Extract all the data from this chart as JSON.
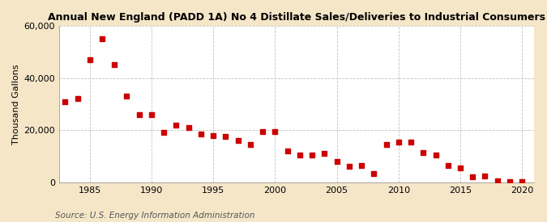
{
  "title": "Annual New England (PADD 1A) No 4 Distillate Sales/Deliveries to Industrial Consumers",
  "ylabel": "Thousand Gallons",
  "source": "Source: U.S. Energy Information Administration",
  "outer_bg": "#f5e6c8",
  "plot_bg": "#ffffff",
  "point_color": "#cc0000",
  "years": [
    1983,
    1984,
    1985,
    1986,
    1987,
    1988,
    1989,
    1990,
    1991,
    1992,
    1993,
    1994,
    1995,
    1996,
    1997,
    1998,
    1999,
    2000,
    2001,
    2002,
    2003,
    2004,
    2005,
    2006,
    2007,
    2008,
    2009,
    2010,
    2011,
    2012,
    2013,
    2014,
    2015,
    2016,
    2017,
    2018,
    2019,
    2020
  ],
  "values": [
    31000,
    32000,
    47000,
    55000,
    45000,
    33000,
    26000,
    26000,
    19000,
    22000,
    21000,
    18500,
    18000,
    17500,
    16000,
    14500,
    19500,
    19500,
    12000,
    10500,
    10500,
    11000,
    8000,
    6000,
    6500,
    3500,
    14500,
    15500,
    15500,
    11500,
    10500,
    6500,
    5500,
    2000,
    2500,
    700,
    300,
    300
  ],
  "xlim": [
    1982.5,
    2021
  ],
  "ylim": [
    0,
    60000
  ],
  "yticks": [
    0,
    20000,
    40000,
    60000
  ],
  "xticks": [
    1985,
    1990,
    1995,
    2000,
    2005,
    2010,
    2015,
    2020
  ],
  "grid_color": "#bbbbbb",
  "title_fontsize": 9,
  "axis_fontsize": 8,
  "source_fontsize": 7.5
}
